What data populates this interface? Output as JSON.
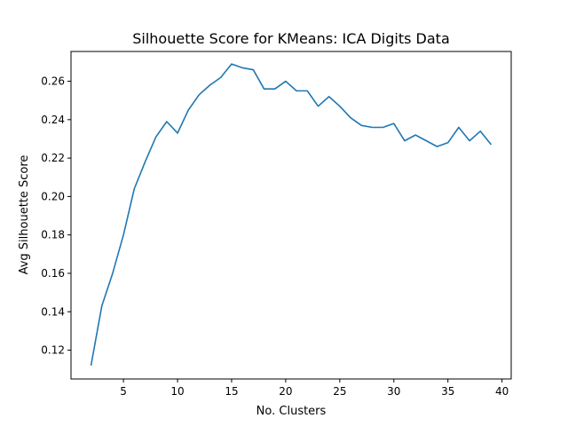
{
  "chart_data": {
    "type": "line",
    "title": "Silhouette Score for KMeans: ICA Digits Data",
    "xlabel": "No. Clusters",
    "ylabel": "Avg Silhouette Score",
    "xlim": [
      0.15,
      40.85
    ],
    "ylim": [
      0.105,
      0.2755
    ],
    "x_ticks": [
      5,
      10,
      15,
      20,
      25,
      30,
      35,
      40
    ],
    "y_ticks": [
      0.12,
      0.14,
      0.16,
      0.18,
      0.2,
      0.22,
      0.24,
      0.26
    ],
    "x_tick_labels": [
      "5",
      "10",
      "15",
      "20",
      "25",
      "30",
      "35",
      "40"
    ],
    "y_tick_labels": [
      "0.12",
      "0.14",
      "0.16",
      "0.18",
      "0.20",
      "0.22",
      "0.24",
      "0.26"
    ],
    "grid": false,
    "line_color": "#1f77b4",
    "series": [
      {
        "x": [
          2,
          3,
          4,
          5,
          6,
          7,
          8,
          9,
          10,
          11,
          12,
          13,
          14,
          15,
          16,
          17,
          18,
          19,
          20,
          21,
          22,
          23,
          24,
          25,
          26,
          27,
          28,
          29,
          30,
          31,
          32,
          33,
          34,
          35,
          36,
          37,
          38,
          39
        ],
        "values": [
          0.112,
          0.143,
          0.16,
          0.18,
          0.204,
          0.218,
          0.231,
          0.239,
          0.233,
          0.245,
          0.253,
          0.258,
          0.262,
          0.269,
          0.267,
          0.266,
          0.256,
          0.256,
          0.26,
          0.255,
          0.255,
          0.247,
          0.252,
          0.247,
          0.241,
          0.237,
          0.236,
          0.236,
          0.238,
          0.229,
          0.232,
          0.229,
          0.226,
          0.228,
          0.236,
          0.229,
          0.234,
          0.227
        ]
      }
    ]
  }
}
